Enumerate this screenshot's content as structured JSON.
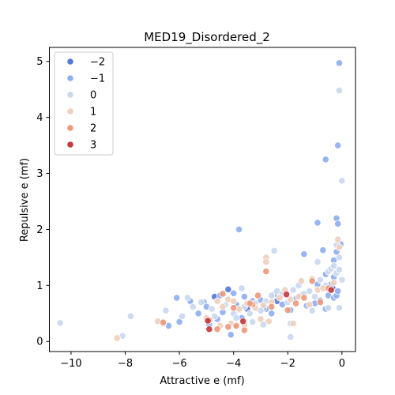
{
  "chart_data": {
    "type": "scatter",
    "title": "MED19_Disordered_2",
    "xlabel": "Attractive e (mf)",
    "ylabel": "Repulsive e (mf)",
    "xlim": [
      -10.8,
      0.5
    ],
    "ylim": [
      -0.18,
      5.25
    ],
    "xticks": [
      -10,
      -8,
      -6,
      -4,
      -2,
      0
    ],
    "xtick_labels": [
      "−10",
      "−8",
      "−6",
      "−4",
      "−2",
      "0"
    ],
    "yticks": [
      0,
      1,
      2,
      3,
      4,
      5
    ],
    "ytick_labels": [
      "0",
      "1",
      "2",
      "3",
      "4",
      "5"
    ],
    "grid": false,
    "legend": {
      "position": "top-left",
      "entries": [
        {
          "label": "−2",
          "color": "#5a78d6"
        },
        {
          "label": "−1",
          "color": "#90aff0"
        },
        {
          "label": "0",
          "color": "#cad8ef"
        },
        {
          "label": "1",
          "color": "#efcfbd"
        },
        {
          "label": "2",
          "color": "#ec9a7e"
        },
        {
          "label": "3",
          "color": "#c8393f"
        }
      ]
    },
    "series": [
      {
        "name": "−2",
        "color": "#5a78d6",
        "points": [
          [
            -4.7,
            0.8
          ],
          [
            -4.2,
            0.93
          ],
          [
            -2.4,
            0.72
          ],
          [
            -0.35,
            0.96
          ],
          [
            -3.5,
            0.58
          ]
        ]
      },
      {
        "name": "−1",
        "color": "#90aff0",
        "points": [
          [
            -0.1,
            4.97
          ],
          [
            -0.15,
            3.5
          ],
          [
            -0.6,
            3.25
          ],
          [
            -3.8,
            2.0
          ],
          [
            -0.2,
            2.2
          ],
          [
            -0.15,
            2.1
          ],
          [
            -0.9,
            2.12
          ],
          [
            -0.05,
            1.74
          ],
          [
            -1.4,
            1.56
          ],
          [
            -0.7,
            1.63
          ],
          [
            -0.3,
            1.45
          ],
          [
            -0.2,
            1.6
          ],
          [
            -6.1,
            0.78
          ],
          [
            -6.4,
            0.28
          ],
          [
            -6.0,
            0.35
          ],
          [
            -5.6,
            0.72
          ],
          [
            -5.1,
            0.7
          ],
          [
            -5.0,
            0.62
          ],
          [
            -4.5,
            0.82
          ],
          [
            -4.4,
            0.52
          ],
          [
            -4.0,
            0.86
          ],
          [
            -3.9,
            0.66
          ],
          [
            -3.6,
            0.8
          ],
          [
            -3.3,
            0.72
          ],
          [
            -3.0,
            0.74
          ],
          [
            -2.8,
            0.58
          ],
          [
            -2.5,
            0.84
          ],
          [
            -2.2,
            0.66
          ],
          [
            -1.7,
            0.76
          ],
          [
            -1.3,
            0.64
          ],
          [
            -1.0,
            0.68
          ],
          [
            -0.8,
            0.73
          ],
          [
            -0.5,
            0.82
          ],
          [
            -0.3,
            0.78
          ],
          [
            -0.2,
            0.82
          ],
          [
            -4.1,
            0.12
          ],
          [
            -3.7,
            0.42
          ],
          [
            -2.9,
            0.6
          ],
          [
            -1.9,
            0.56
          ],
          [
            -0.6,
            0.58
          ],
          [
            -0.3,
            1.15
          ],
          [
            -0.4,
            1.02
          ],
          [
            -0.6,
            1.2
          ],
          [
            -0.15,
            0.9
          ],
          [
            -4.6,
            0.4
          ],
          [
            -5.3,
            0.5
          ],
          [
            -4.9,
            0.3
          ],
          [
            -1.5,
            0.82
          ],
          [
            -2.6,
            0.5
          ],
          [
            -0.9,
            1.02
          ]
        ]
      },
      {
        "name": "0",
        "color": "#cad8ef",
        "points": [
          [
            -10.4,
            0.33
          ],
          [
            -8.1,
            0.1
          ],
          [
            -7.8,
            0.45
          ],
          [
            -6.5,
            0.55
          ],
          [
            -5.9,
            0.45
          ],
          [
            -5.7,
            0.78
          ],
          [
            -5.5,
            0.62
          ],
          [
            -5.2,
            0.7
          ],
          [
            -4.8,
            0.58
          ],
          [
            -4.3,
            0.65
          ],
          [
            -4.0,
            0.5
          ],
          [
            -3.8,
            0.56
          ],
          [
            -3.6,
            0.62
          ],
          [
            -3.4,
            0.5
          ],
          [
            -3.2,
            0.68
          ],
          [
            -3.0,
            0.55
          ],
          [
            -2.8,
            0.72
          ],
          [
            -2.6,
            0.82
          ],
          [
            -2.4,
            0.9
          ],
          [
            -2.2,
            0.85
          ],
          [
            -2.0,
            0.7
          ],
          [
            -1.8,
            0.92
          ],
          [
            -1.6,
            1.0
          ],
          [
            -1.4,
            0.85
          ],
          [
            -1.2,
            0.9
          ],
          [
            -1.0,
            0.8
          ],
          [
            -0.8,
            1.1
          ],
          [
            -0.6,
            1.0
          ],
          [
            -0.5,
            1.25
          ],
          [
            -0.4,
            1.3
          ],
          [
            -0.3,
            1.35
          ],
          [
            -0.2,
            1.22
          ],
          [
            -0.1,
            1.28
          ],
          [
            0.0,
            1.1
          ],
          [
            -0.1,
            4.48
          ],
          [
            0.0,
            2.87
          ],
          [
            -0.1,
            1.5
          ],
          [
            -0.2,
            1.72
          ],
          [
            -1.9,
            0.08
          ],
          [
            -1.9,
            0.32
          ],
          [
            -2.5,
            1.62
          ],
          [
            -4.7,
            0.45
          ],
          [
            -3.9,
            0.42
          ],
          [
            -3.3,
            0.35
          ],
          [
            -2.9,
            0.3
          ],
          [
            -0.9,
            1.42
          ],
          [
            -0.5,
            0.6
          ],
          [
            -0.1,
            0.6
          ],
          [
            -1.1,
            0.55
          ],
          [
            -3.7,
            0.95
          ]
        ]
      },
      {
        "name": "1",
        "color": "#efcfbd",
        "points": [
          [
            -8.3,
            0.06
          ],
          [
            -6.8,
            0.36
          ],
          [
            -6.6,
            0.32
          ],
          [
            -5.0,
            0.42
          ],
          [
            -4.6,
            0.72
          ],
          [
            -4.4,
            0.62
          ],
          [
            -4.2,
            0.75
          ],
          [
            -4.0,
            0.72
          ],
          [
            -3.8,
            0.58
          ],
          [
            -3.5,
            0.68
          ],
          [
            -3.2,
            0.6
          ],
          [
            -2.9,
            0.65
          ],
          [
            -2.8,
            1.5
          ],
          [
            -2.8,
            1.42
          ],
          [
            -2.6,
            0.7
          ],
          [
            -2.3,
            0.78
          ],
          [
            -2.1,
            0.92
          ],
          [
            -1.9,
            0.75
          ],
          [
            -1.6,
            0.8
          ],
          [
            -1.5,
            1.08
          ],
          [
            -1.1,
            1.12
          ],
          [
            -0.9,
            0.92
          ],
          [
            -0.7,
            0.95
          ],
          [
            -0.3,
            1.05
          ],
          [
            -0.15,
            1.82
          ],
          [
            -0.1,
            1.68
          ],
          [
            -4.5,
            0.28
          ],
          [
            -4.1,
            0.32
          ],
          [
            -3.6,
            0.3
          ],
          [
            -3.0,
            0.4
          ],
          [
            -2.7,
            0.36
          ],
          [
            -1.8,
            0.32
          ],
          [
            -1.2,
            0.66
          ]
        ]
      },
      {
        "name": "2",
        "color": "#ec9a7e",
        "points": [
          [
            -6.6,
            0.34
          ],
          [
            -4.9,
            0.38
          ],
          [
            -4.4,
            0.85
          ],
          [
            -4.2,
            0.26
          ],
          [
            -4.0,
            0.6
          ],
          [
            -3.6,
            0.2
          ],
          [
            -3.3,
            0.66
          ],
          [
            -3.1,
            0.82
          ],
          [
            -2.8,
            1.25
          ],
          [
            -2.6,
            0.62
          ],
          [
            -2.0,
            0.56
          ],
          [
            -1.7,
            0.68
          ],
          [
            -1.1,
            1.08
          ],
          [
            -0.8,
            0.7
          ],
          [
            -0.5,
            0.95
          ],
          [
            -4.6,
            0.22
          ],
          [
            -3.9,
            0.28
          ],
          [
            -3.4,
            0.68
          ],
          [
            -1.4,
            0.78
          ]
        ]
      },
      {
        "name": "3",
        "color": "#c8393f",
        "points": [
          [
            -4.9,
            0.22
          ],
          [
            -4.95,
            0.37
          ],
          [
            -3.65,
            0.36
          ],
          [
            -2.05,
            0.84
          ],
          [
            -0.4,
            0.92
          ]
        ]
      }
    ]
  }
}
